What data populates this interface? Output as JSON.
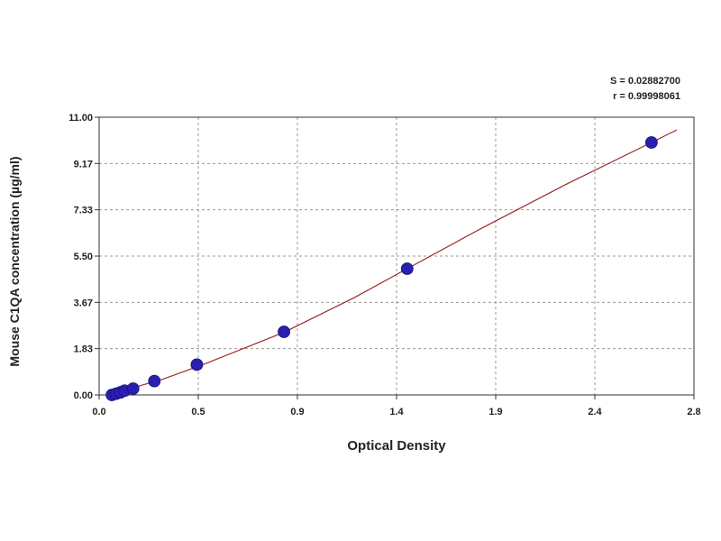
{
  "stats": {
    "s": "S = 0.02882700",
    "r": "r = 0.99998061"
  },
  "chart_data": {
    "type": "scatter",
    "xlabel": "Optical Density",
    "ylabel": "Mouse C1QA concentration (µg/ml)",
    "x_ticks": [
      "0.0",
      "0.5",
      "0.9",
      "1.4",
      "1.9",
      "2.4",
      "2.8"
    ],
    "y_ticks": [
      "0.00",
      "1.83",
      "3.67",
      "5.50",
      "7.33",
      "9.17",
      "11.00"
    ],
    "xlim": [
      0.0,
      2.8
    ],
    "ylim": [
      0.0,
      11.0
    ],
    "grid": true,
    "colors": {
      "points": "#2a1fb0",
      "curve": "#9e2a2a",
      "grid": "#9a9a9a"
    },
    "series": [
      {
        "kind": "points",
        "x": [
          0.06,
          0.08,
          0.1,
          0.12,
          0.16,
          0.26,
          0.46,
          0.87,
          1.45,
          2.6
        ],
        "y": [
          0.0,
          0.05,
          0.1,
          0.17,
          0.25,
          0.55,
          1.2,
          2.5,
          5.0,
          10.0
        ]
      },
      {
        "kind": "fit-curve",
        "x": [
          0.04,
          0.3,
          0.5,
          0.87,
          1.2,
          1.45,
          1.8,
          2.2,
          2.6,
          2.72
        ],
        "y": [
          0.0,
          0.62,
          1.24,
          2.48,
          3.85,
          5.0,
          6.6,
          8.35,
          10.0,
          10.5
        ]
      }
    ]
  }
}
